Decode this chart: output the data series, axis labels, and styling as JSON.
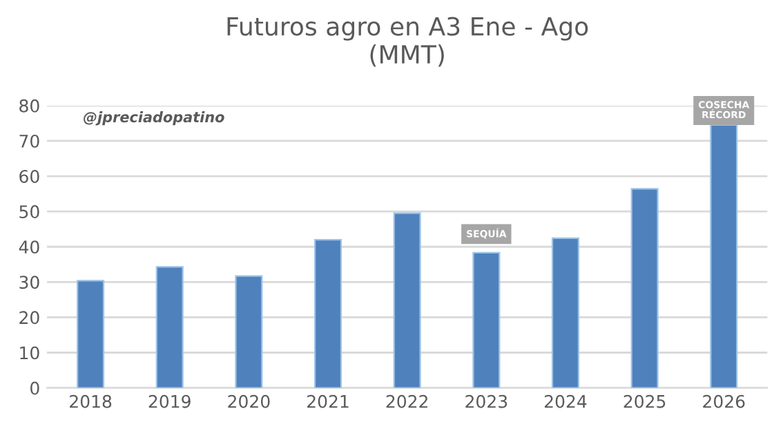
{
  "chart_data": {
    "type": "bar",
    "title": "Futuros agro en A3 Ene - Ago\n(MMT)",
    "categories": [
      "2018",
      "2019",
      "2020",
      "2021",
      "2022",
      "2023",
      "2024",
      "2025",
      "2026"
    ],
    "values": [
      30.4,
      34.3,
      31.7,
      42.0,
      49.5,
      38.3,
      42.4,
      56.4,
      74.5
    ],
    "color": "#4f81bd",
    "ylim": [
      0,
      80
    ],
    "yticks": [
      0,
      10,
      20,
      30,
      40,
      50,
      60,
      70,
      80
    ],
    "grid": "y",
    "annotations": [
      "@jpreciadopatino",
      {
        "text": "SEQUÍA",
        "x": "2023",
        "y": 43.6
      },
      {
        "text": "COSECHA\nRÉCORD",
        "x": "2026",
        "y": 78.6
      }
    ]
  }
}
